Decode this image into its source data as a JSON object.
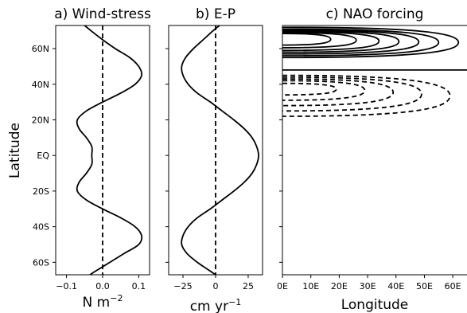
{
  "figure": {
    "ylabel": "Latitude",
    "lat_ticks": [
      "60N",
      "40N",
      "20N",
      "EQ",
      "20S",
      "40S",
      "60S"
    ],
    "lat_values": [
      60,
      40,
      20,
      0,
      -20,
      -40,
      -60
    ],
    "lat_range": [
      -67,
      73
    ]
  },
  "chart_data": [
    {
      "type": "line",
      "title": "a) Wind-stress",
      "xlabel": "N m",
      "xlabel_sup": "−2",
      "xlim": [
        -0.13,
        0.13
      ],
      "xticks": [
        -0.1,
        0.0,
        0.1
      ],
      "xtick_labels": [
        "−0.1",
        "0.0",
        "0.1"
      ],
      "zero_line": "dashed",
      "series": [
        {
          "lat": [
            73,
            70,
            65,
            60,
            55,
            50,
            45,
            40,
            35,
            30,
            25,
            20,
            15,
            10,
            5,
            0,
            -5,
            -10,
            -15,
            -20,
            -25,
            -30,
            -35,
            -40,
            -45,
            -50,
            -55,
            -60,
            -65,
            -67
          ],
          "value": [
            -0.05,
            -0.032,
            0.0,
            0.035,
            0.075,
            0.1,
            0.108,
            0.09,
            0.05,
            0.0,
            -0.045,
            -0.07,
            -0.065,
            -0.045,
            -0.03,
            -0.03,
            -0.03,
            -0.045,
            -0.065,
            -0.07,
            -0.045,
            0.0,
            0.05,
            0.09,
            0.108,
            0.1,
            0.06,
            0.02,
            -0.02,
            -0.035
          ]
        }
      ]
    },
    {
      "type": "line",
      "title": "b) E-P",
      "xlabel": "cm yr",
      "xlabel_sup": "−1",
      "xlim": [
        -36,
        36
      ],
      "xticks": [
        -25,
        0,
        25
      ],
      "xtick_labels": [
        "−25",
        "0",
        "25"
      ],
      "zero_line": "dashed",
      "series": [
        {
          "lat": [
            73,
            70,
            65,
            60,
            55,
            50,
            45,
            40,
            35,
            30,
            25,
            20,
            15,
            10,
            5,
            0,
            -5,
            -10,
            -15,
            -20,
            -25,
            -30,
            -35,
            -40,
            -45,
            -50,
            -55,
            -60,
            -65,
            -67
          ],
          "value": [
            3,
            -2,
            -9.5,
            -17,
            -23,
            -26,
            -25,
            -21,
            -14,
            -4,
            5,
            14,
            22,
            28,
            31.5,
            33,
            31.5,
            28,
            22,
            14,
            5,
            -4,
            -14,
            -21,
            -25,
            -26,
            -22,
            -14,
            -4,
            0
          ]
        }
      ]
    },
    {
      "type": "contour",
      "title": "c) NAO forcing",
      "xlabel": "Longitude",
      "xlim": [
        0,
        65
      ],
      "xticks": [
        0,
        10,
        20,
        30,
        40,
        50,
        60
      ],
      "xtick_labels": [
        "0E",
        "10E",
        "20E",
        "30E",
        "40E",
        "50E",
        "60E"
      ],
      "positive_style": "solid",
      "negative_style": "dashed",
      "positive_contours": [
        {
          "lat_outer": 72,
          "lat_inner": 55,
          "lon_max": 62
        },
        {
          "lat_outer": 71,
          "lat_inner": 56,
          "lon_max": 55
        },
        {
          "lat_outer": 70.5,
          "lat_inner": 57,
          "lon_max": 48
        },
        {
          "lat_outer": 70,
          "lat_inner": 58,
          "lon_max": 41
        },
        {
          "lat_outer": 69.5,
          "lat_inner": 59,
          "lon_max": 34
        },
        {
          "lat_outer": 69,
          "lat_inner": 60.5,
          "lon_max": 26
        },
        {
          "lat_outer": 68.5,
          "lat_inner": 62,
          "lon_max": 17
        }
      ],
      "boundary_lat": 48,
      "negative_contours": [
        {
          "lat_outer": 45,
          "lat_inner": 22,
          "lon_max": 59
        },
        {
          "lat_outer": 44,
          "lat_inner": 25,
          "lon_max": 49
        },
        {
          "lat_outer": 43,
          "lat_inner": 28,
          "lon_max": 39
        },
        {
          "lat_outer": 42,
          "lat_inner": 31,
          "lon_max": 29
        },
        {
          "lat_outer": 40.5,
          "lat_inner": 34,
          "lon_max": 19
        }
      ]
    }
  ]
}
